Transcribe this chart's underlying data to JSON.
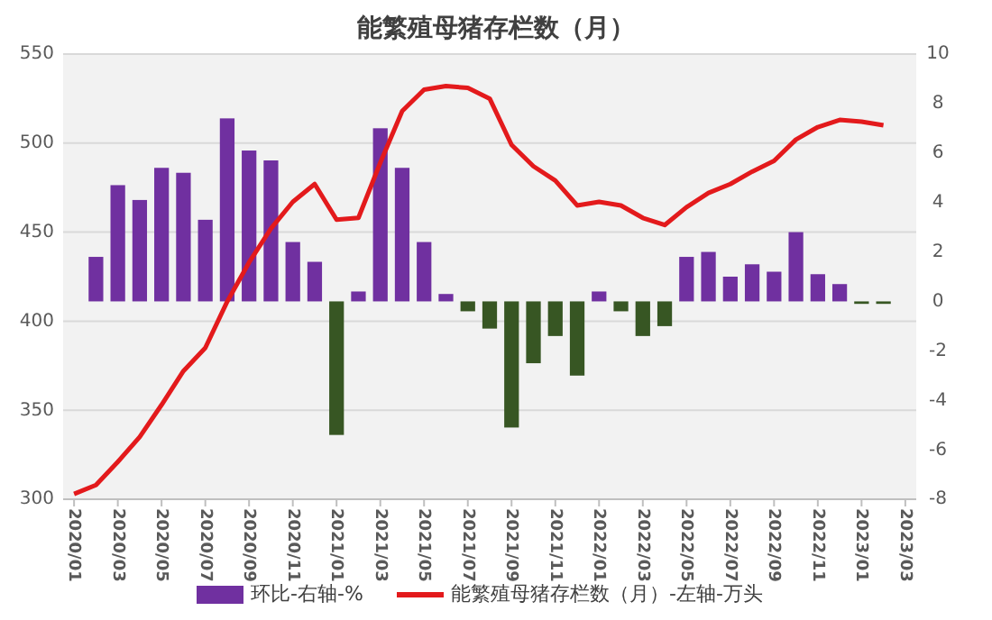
{
  "chart_data": {
    "type": "bar",
    "title": "能繁殖母猪存栏数（月）",
    "categories": [
      "2020/01",
      null,
      "2020/03",
      null,
      "2020/05",
      null,
      "2020/07",
      null,
      "2020/09",
      null,
      "2020/11",
      null,
      "2021/01",
      null,
      "2021/03",
      null,
      "2021/05",
      null,
      "2021/07",
      null,
      "2021/09",
      null,
      "2021/11",
      null,
      "2022/01",
      null,
      "2022/03",
      null,
      "2022/05",
      null,
      "2022/07",
      null,
      "2022/09",
      null,
      "2022/11",
      null,
      "2023/01",
      null,
      "2023/03"
    ],
    "series": [
      {
        "name": "环比-右轴-%",
        "axis": "y2",
        "color": "#7030a0",
        "colors": [
          null,
          "#7030a0",
          "#7030a0",
          "#7030a0",
          "#7030a0",
          "#7030a0",
          "#7030a0",
          "#7030a0",
          "#7030a0",
          "#7030a0",
          "#7030a0",
          "#7030a0",
          "#375623",
          "#7030a0",
          "#7030a0",
          "#7030a0",
          "#7030a0",
          "#7030a0",
          "#375623",
          "#375623",
          "#375623",
          "#375623",
          "#375623",
          "#375623",
          "#7030a0",
          "#375623",
          "#375623",
          "#375623",
          "#7030a0",
          "#7030a0",
          "#7030a0",
          "#7030a0",
          "#7030a0",
          "#7030a0",
          "#7030a0",
          "#7030a0",
          "#375623",
          "#375623",
          null
        ],
        "values": [
          null,
          1.8,
          4.7,
          4.1,
          5.4,
          5.2,
          3.3,
          7.4,
          6.1,
          5.7,
          2.4,
          1.6,
          -5.4,
          0.4,
          7.0,
          5.4,
          2.4,
          0.3,
          -0.4,
          -1.1,
          -5.1,
          -2.5,
          -1.4,
          -3.0,
          0.4,
          -0.4,
          -1.4,
          -1.0,
          1.8,
          2.0,
          1.0,
          1.5,
          1.2,
          2.8,
          1.1,
          0.7,
          -0.1,
          -0.1,
          null
        ]
      },
      {
        "name": "能繁殖母猪存栏数（月）-左轴-万头",
        "type": "line",
        "color": "#e31a1c",
        "marker": "none",
        "values": [
          303,
          308,
          321,
          335,
          353,
          372,
          385,
          411,
          433,
          452,
          467,
          477,
          457,
          458,
          489,
          518,
          530,
          532,
          531,
          525,
          499,
          487,
          479,
          465,
          467,
          465,
          458,
          454,
          464,
          472,
          477,
          484,
          490,
          502,
          509,
          513,
          512,
          510,
          null
        ]
      }
    ],
    "ylim": [
      300,
      550
    ],
    "yticks": [
      300,
      350,
      400,
      450,
      500,
      550
    ],
    "y2lim": [
      -8,
      10
    ],
    "y2ticks": [
      -8,
      -6,
      -4,
      -2,
      0,
      2,
      4,
      6,
      8,
      10
    ],
    "grid": "y",
    "legend": "bottom"
  }
}
